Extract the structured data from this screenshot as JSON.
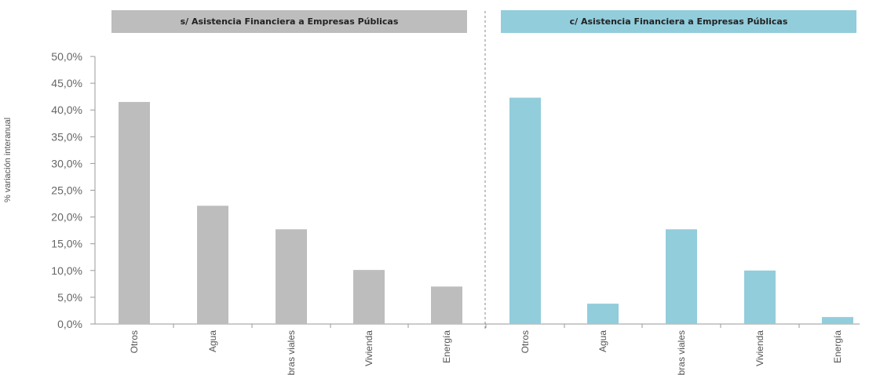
{
  "chart_data": {
    "type": "bar",
    "ylabel": "% variación interanual",
    "ylim": [
      0,
      50
    ],
    "ytick_values": [
      0,
      5,
      10,
      15,
      20,
      25,
      30,
      35,
      40,
      45,
      50
    ],
    "ytick_labels": [
      "0,0%",
      "5,0%",
      "10,0%",
      "15,0%",
      "20,0%",
      "25,0%",
      "30,0%",
      "35,0%",
      "40,0%",
      "45,0%",
      "50,0%"
    ],
    "categories": [
      "Otros",
      "Agua",
      "Obras viales",
      "Vivienda",
      "Energía"
    ],
    "panels": [
      {
        "title": "s/ Asistencia Financiera a Empresas Públicas",
        "title_bg": "#bdbdbd",
        "bar_color": "#bdbdbd",
        "values": [
          41.5,
          22.1,
          17.7,
          10.1,
          7.0
        ]
      },
      {
        "title": "c/ Asistencia Financiera a Empresas Públicas",
        "title_bg": "#92cddc",
        "bar_color": "#92cddc",
        "values": [
          42.3,
          3.8,
          17.7,
          10.0,
          1.3
        ]
      }
    ]
  }
}
